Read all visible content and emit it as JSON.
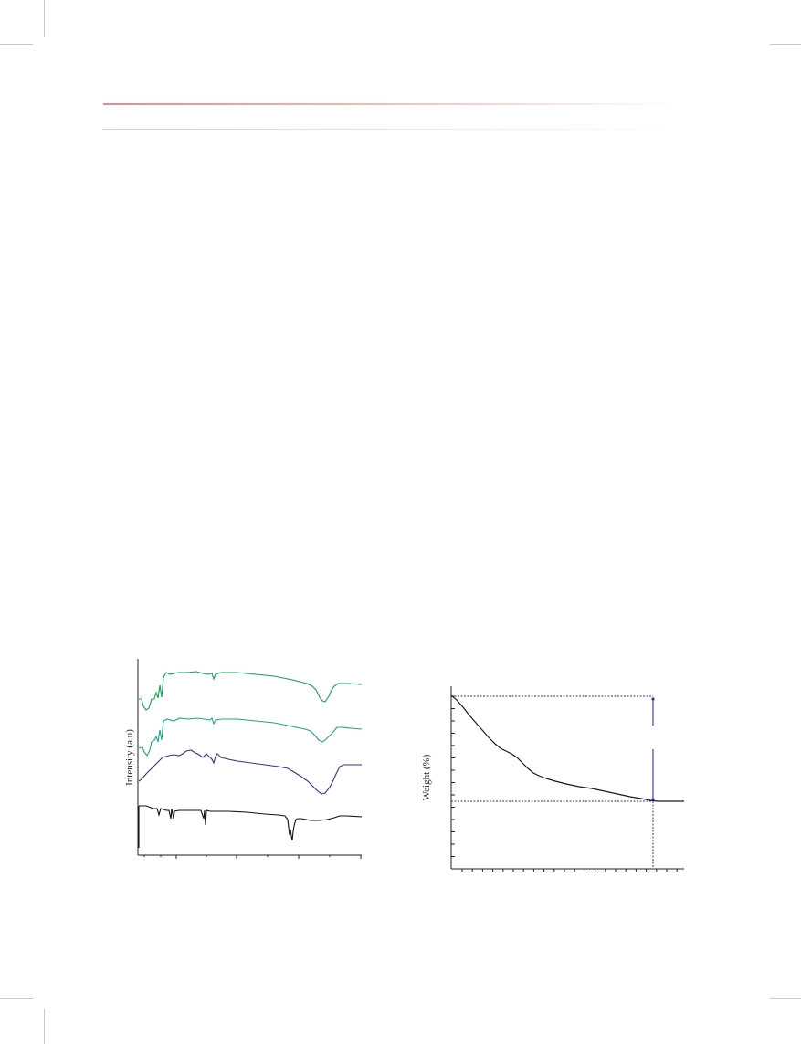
{
  "figure_left": {
    "ylabel": "Intensity (a.u)",
    "series_colors": [
      "#17a052",
      "#21a48a",
      "#2e3692",
      "#111111"
    ]
  },
  "figure_right": {
    "ylabel": "Weight (%)",
    "line_color": "#1a1a1a",
    "guide_color": "#2e3692"
  },
  "chart_data": [
    {
      "type": "line",
      "title": "",
      "xlabel": "",
      "ylabel": "Intensity (a.u)",
      "x_ticks_labeled": false,
      "y_ticks_labeled": false,
      "grid": false,
      "legend": "none",
      "series": [
        {
          "values_note": "spectrum 1 (green), offset stacked, top"
        },
        {
          "values_note": "spectrum 2 (teal), offset stacked"
        },
        {
          "values_note": "spectrum 3 (blue), offset stacked"
        },
        {
          "values_note": "spectrum 4 (black), bottom"
        }
      ]
    },
    {
      "type": "line",
      "title": "",
      "xlabel": "",
      "ylabel": "Weight (%)",
      "x_ticks_labeled": false,
      "y_ticks_labeled": false,
      "grid": false,
      "legend": "none",
      "series": [
        {
          "shape": "monotonic decrease then plateau",
          "relative_start": 1.0,
          "relative_plateau": 0.0
        }
      ]
    }
  ]
}
